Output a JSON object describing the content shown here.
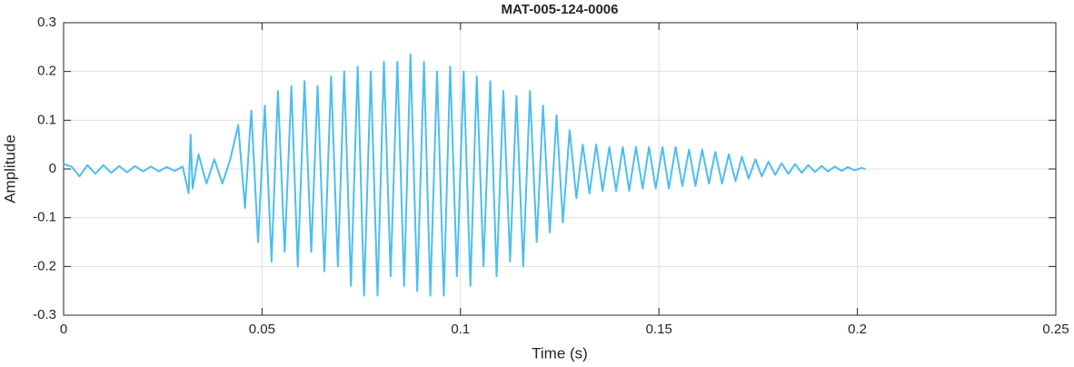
{
  "chart_data": {
    "type": "line",
    "title": "MAT-005-124-0006",
    "xlabel": "Time (s)",
    "ylabel": "Amplitude",
    "color": "#4DBEEE",
    "grid": true,
    "xlim": [
      0,
      0.25
    ],
    "xticks": [
      0,
      0.05,
      0.1,
      0.15,
      0.2,
      0.25
    ],
    "ylim": [
      -0.3,
      0.3
    ],
    "yticks": [
      -0.3,
      -0.2,
      -0.1,
      0,
      0.1,
      0.2,
      0.3
    ],
    "x": [
      0,
      0.002,
      0.004,
      0.006,
      0.008,
      0.01,
      0.012,
      0.014,
      0.016,
      0.018,
      0.02,
      0.022,
      0.024,
      0.026,
      0.028,
      0.03,
      0.0315,
      0.032,
      0.0325,
      0.034,
      0.036,
      0.038,
      0.04,
      0.042,
      0.044,
      0.0457,
      0.0473,
      0.049,
      0.0507,
      0.0524,
      0.054,
      0.0557,
      0.0574,
      0.059,
      0.0607,
      0.0624,
      0.064,
      0.0657,
      0.0674,
      0.0691,
      0.0707,
      0.0724,
      0.0741,
      0.0757,
      0.0774,
      0.0791,
      0.0807,
      0.0824,
      0.0841,
      0.0858,
      0.0874,
      0.0891,
      0.0908,
      0.0924,
      0.0941,
      0.0958,
      0.0974,
      0.0991,
      0.1008,
      0.1025,
      0.1041,
      0.1058,
      0.1075,
      0.1091,
      0.1108,
      0.1125,
      0.1141,
      0.1158,
      0.1175,
      0.1192,
      0.1208,
      0.1225,
      0.1242,
      0.1258,
      0.1275,
      0.1292,
      0.1308,
      0.1325,
      0.1342,
      0.1358,
      0.1375,
      0.1392,
      0.1409,
      0.1425,
      0.1442,
      0.1459,
      0.1475,
      0.1492,
      0.1509,
      0.1525,
      0.1542,
      0.1559,
      0.1576,
      0.1592,
      0.1609,
      0.1626,
      0.1642,
      0.1659,
      0.1676,
      0.1693,
      0.1709,
      0.1726,
      0.1743,
      0.1759,
      0.1776,
      0.1793,
      0.1809,
      0.1826,
      0.1843,
      0.186,
      0.1876,
      0.1893,
      0.191,
      0.1926,
      0.1943,
      0.196,
      0.1976,
      0.1993,
      0.201,
      0.202
    ],
    "values": [
      0.01,
      0.005,
      -0.015,
      0.008,
      -0.01,
      0.008,
      -0.008,
      0.006,
      -0.007,
      0.006,
      -0.005,
      0.005,
      -0.005,
      0.004,
      -0.004,
      0.005,
      -0.05,
      0.07,
      -0.04,
      0.03,
      -0.03,
      0.02,
      -0.03,
      0.02,
      0.09,
      -0.08,
      0.12,
      -0.15,
      0.13,
      -0.19,
      0.16,
      -0.17,
      0.17,
      -0.2,
      0.18,
      -0.17,
      0.17,
      -0.21,
      0.19,
      -0.2,
      0.2,
      -0.24,
      0.21,
      -0.26,
      0.2,
      -0.26,
      0.22,
      -0.22,
      0.22,
      -0.24,
      0.235,
      -0.25,
      0.22,
      -0.26,
      0.2,
      -0.26,
      0.21,
      -0.22,
      0.2,
      -0.24,
      0.19,
      -0.2,
      0.18,
      -0.22,
      0.16,
      -0.19,
      0.15,
      -0.2,
      0.16,
      -0.15,
      0.13,
      -0.13,
      0.11,
      -0.11,
      0.08,
      -0.06,
      0.05,
      -0.05,
      0.05,
      -0.045,
      0.045,
      -0.045,
      0.045,
      -0.045,
      0.045,
      -0.04,
      0.045,
      -0.04,
      0.045,
      -0.04,
      0.045,
      -0.035,
      0.04,
      -0.035,
      0.04,
      -0.03,
      0.035,
      -0.03,
      0.03,
      -0.025,
      0.025,
      -0.02,
      0.02,
      -0.015,
      0.015,
      -0.012,
      0.012,
      -0.01,
      0.01,
      -0.008,
      0.008,
      -0.006,
      0.006,
      -0.005,
      0.005,
      -0.004,
      0.004,
      -0.003,
      0.002,
      0
    ]
  }
}
